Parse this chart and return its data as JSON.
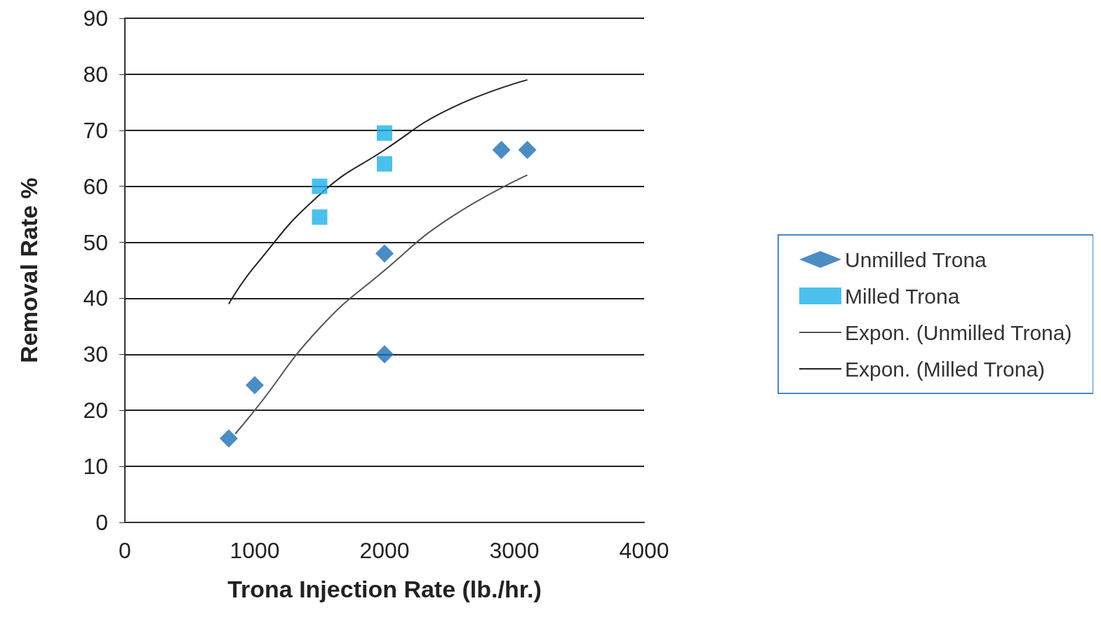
{
  "chart_data": {
    "type": "scatter",
    "xlabel": "Trona Injection Rate (lb./hr.)",
    "ylabel": "Removal Rate %",
    "xlim": [
      0,
      4000
    ],
    "xticks": [
      0,
      {
        "value": 1000,
        "label": "1000"
      },
      {
        "value": 2000,
        "label": "2000"
      },
      {
        "value": 3000,
        "label": "3000"
      },
      {
        "value": 4000,
        "label": "4000"
      }
    ],
    "ylim": [
      0,
      90
    ],
    "yticks": [
      0,
      10,
      20,
      30,
      40,
      50,
      60,
      70,
      80,
      90
    ],
    "grid": "y",
    "legend": "right",
    "series": [
      {
        "name": "Unmilled Trona",
        "marker": "diamond",
        "color": "#1f6fb5",
        "x": [
          800,
          1000,
          2000,
          2000,
          2900,
          3100
        ],
        "values": [
          15,
          24.5,
          48,
          30,
          66.5,
          66.5
        ]
      },
      {
        "name": "Milled Trona",
        "marker": "square",
        "color": "#1fb0e8",
        "x": [
          1500,
          1500,
          2000,
          2000
        ],
        "values": [
          60,
          54.5,
          69.5,
          64
        ]
      },
      {
        "name": "Expon. (Unmilled Trona)",
        "type": "line",
        "marker": "none",
        "color": "#555555",
        "x": [
          850,
          1000,
          1500,
          2000,
          2500,
          3100
        ],
        "values": [
          15.8,
          20,
          34.7,
          45,
          54.3,
          62
        ]
      },
      {
        "name": "Expon. (Milled Trona)",
        "type": "line",
        "marker": "none",
        "color": "#222222",
        "x": [
          800,
          1000,
          1500,
          2000,
          2500,
          3100
        ],
        "values": [
          39,
          45.7,
          58.5,
          66.5,
          73.8,
          79
        ]
      }
    ]
  }
}
